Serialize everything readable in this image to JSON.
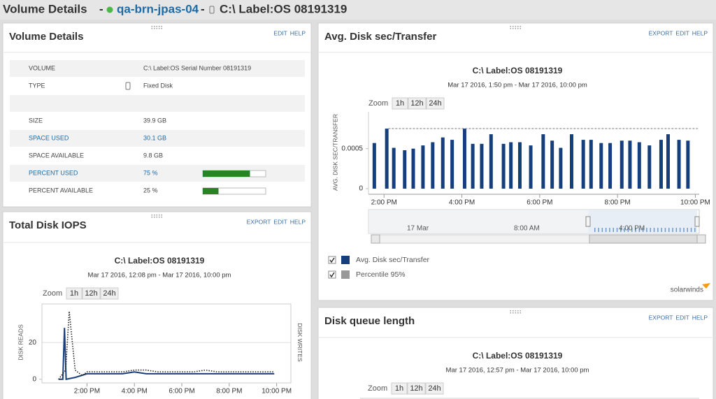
{
  "header": {
    "title": "Volume Details",
    "separator": "-",
    "node": "qa-brn-jpas-04",
    "volume": "C:\\ Label:OS 08191319"
  },
  "volume_details": {
    "title": "Volume Details",
    "actions": [
      "EDIT",
      "HELP"
    ],
    "rows": [
      {
        "label": "VOLUME",
        "value": "C:\\ Label:OS Serial Number 08191319"
      },
      {
        "label": "TYPE",
        "value": "Fixed Disk"
      },
      {
        "label": "SIZE",
        "value": "39.9 GB"
      },
      {
        "label": "SPACE USED",
        "value": "30.1 GB",
        "link": true
      },
      {
        "label": "SPACE AVAILABLE",
        "value": "9.8 GB"
      },
      {
        "label": "PERCENT USED",
        "value": 75,
        "value_label": "75 %",
        "link": true
      },
      {
        "label": "PERCENT AVAILABLE",
        "value": 25,
        "value_label": "25 %"
      }
    ]
  },
  "iops_panel": {
    "title": "Total Disk IOPS",
    "actions": [
      "EXPORT",
      "EDIT",
      "HELP"
    ],
    "chart": {
      "type": "line",
      "title": "C:\\ Label:OS 08191319",
      "subtitle": "Mar 17 2016, 12:08 pm - Mar 17 2016, 10:00 pm",
      "zoom": {
        "label": "Zoom",
        "options": [
          "1h",
          "12h",
          "24h"
        ]
      },
      "ylabel": "DISK READS",
      "y2label": "DISK WRITES",
      "xlim": [
        12.1,
        22.6
      ],
      "xticks": [
        {
          "value": 14,
          "label": "2:00 PM"
        },
        {
          "value": 16,
          "label": "4:00 PM"
        },
        {
          "value": 18,
          "label": "6:00 PM"
        },
        {
          "value": 20,
          "label": "8:00 PM"
        },
        {
          "value": 22,
          "label": "10:00 PM"
        }
      ],
      "ylim": [
        -2,
        41
      ],
      "yticks": [
        0,
        20
      ],
      "grid": true,
      "series": [
        {
          "name": "Disk Reads",
          "color": "#1a3f7a",
          "dash": false,
          "x": [
            12.8,
            12.98,
            13.05,
            13.12,
            13.5,
            14,
            14.5,
            15,
            15.5,
            16,
            16.5,
            17,
            17.5,
            18,
            18.5,
            19,
            19.5,
            20,
            20.5,
            21,
            21.5,
            21.9
          ],
          "values": [
            0,
            0,
            28,
            0,
            1,
            3,
            3,
            3,
            3,
            4,
            3,
            3,
            3,
            3,
            3,
            3,
            3,
            3,
            3,
            3,
            3,
            3
          ]
        },
        {
          "name": "Disk Writes",
          "color": "#222222",
          "dash": true,
          "x": [
            12.8,
            13.1,
            13.25,
            13.5,
            13.8,
            14,
            14.5,
            15,
            15.5,
            16,
            16.5,
            17,
            17.5,
            18,
            18.5,
            19,
            19.5,
            20,
            20.5,
            21,
            21.5,
            21.9
          ],
          "values": [
            0,
            5,
            37,
            5,
            2,
            4,
            4,
            4,
            4,
            5,
            5,
            4,
            4,
            4,
            4,
            5,
            4,
            4,
            4,
            4,
            4,
            4
          ]
        }
      ]
    }
  },
  "avg_panel": {
    "title": "Avg. Disk sec/Transfer",
    "actions": [
      "EXPORT",
      "EDIT",
      "HELP"
    ],
    "chart": {
      "type": "bar",
      "title": "C:\\ Label:OS 08191319",
      "subtitle": "Mar 17 2016, 1:50 pm - Mar 17 2016, 10:00 pm",
      "zoom": {
        "label": "Zoom",
        "options": [
          "1h",
          "12h",
          "24h"
        ]
      },
      "ylabel": "AVG. DISK SEC/TRANSFER",
      "xlim": [
        13.6,
        22.1
      ],
      "xticks": [
        {
          "value": 14,
          "label": "2:00 PM"
        },
        {
          "value": 16,
          "label": "4:00 PM"
        },
        {
          "value": 18,
          "label": "6:00 PM"
        },
        {
          "value": 20,
          "label": "8:00 PM"
        },
        {
          "value": 22,
          "label": "10:00 PM"
        }
      ],
      "ylim": [
        -7e-05,
        0.00096
      ],
      "yticks": [
        0,
        0.0005
      ],
      "series": [
        {
          "name": "Avg. Disk sec/Transfer",
          "color": "#153f7c",
          "x": [
            13.75,
            14.07,
            14.25,
            14.53,
            14.75,
            15.0,
            15.25,
            15.51,
            15.75,
            16.07,
            16.28,
            16.51,
            16.75,
            17.07,
            17.26,
            17.49,
            17.77,
            18.09,
            18.32,
            18.54,
            18.82,
            19.12,
            19.32,
            19.58,
            19.81,
            20.11,
            20.32,
            20.56,
            20.82,
            21.12,
            21.3,
            21.58,
            21.81
          ],
          "values": [
            0.00057,
            0.00075,
            0.00051,
            0.00048,
            0.0005,
            0.00054,
            0.00058,
            0.00064,
            0.00061,
            0.00075,
            0.00056,
            0.00056,
            0.00068,
            0.00056,
            0.00058,
            0.00058,
            0.00054,
            0.00068,
            0.0006,
            0.00051,
            0.00068,
            0.00061,
            0.00061,
            0.00057,
            0.00057,
            0.0006,
            0.0006,
            0.00058,
            0.00054,
            0.00061,
            0.00068,
            0.00061,
            0.0006
          ]
        },
        {
          "name": "Percentile 95%",
          "color": "#999999",
          "value": 0.00075
        }
      ],
      "navigator": {
        "labels": [
          "17 Mar",
          "8:00 AM",
          "4:00 PM"
        ]
      },
      "brand": "solarwinds"
    }
  },
  "queue_panel": {
    "title": "Disk queue length",
    "actions": [
      "EXPORT",
      "EDIT",
      "HELP"
    ],
    "chart": {
      "title": "C:\\ Label:OS 08191319",
      "subtitle": "Mar 17 2016, 12:57 pm - Mar 17 2016, 10:00 pm",
      "zoom": {
        "label": "Zoom",
        "options": [
          "1h",
          "12h",
          "24h"
        ]
      }
    }
  }
}
